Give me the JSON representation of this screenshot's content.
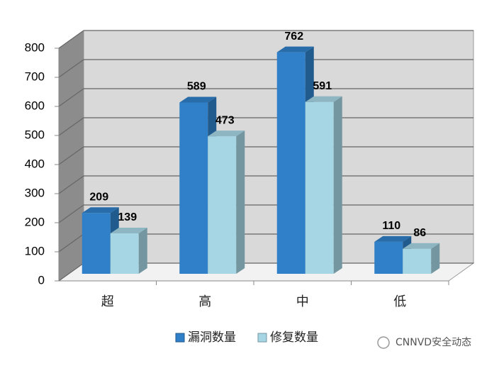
{
  "chart_data": {
    "type": "bar3d",
    "categories": [
      "超",
      "高",
      "中",
      "低"
    ],
    "series": [
      {
        "name": "漏洞数量",
        "color": "#2f80c8",
        "values": [
          209,
          589,
          762,
          110
        ]
      },
      {
        "name": "修复数量",
        "color": "#a6d6e4",
        "values": [
          139,
          473,
          591,
          86
        ]
      }
    ],
    "ylim": [
      0,
      800
    ],
    "yticks": [
      0,
      100,
      200,
      300,
      400,
      500,
      600,
      700,
      800
    ],
    "grid": true,
    "watermark": "CNNVD安全动态"
  }
}
